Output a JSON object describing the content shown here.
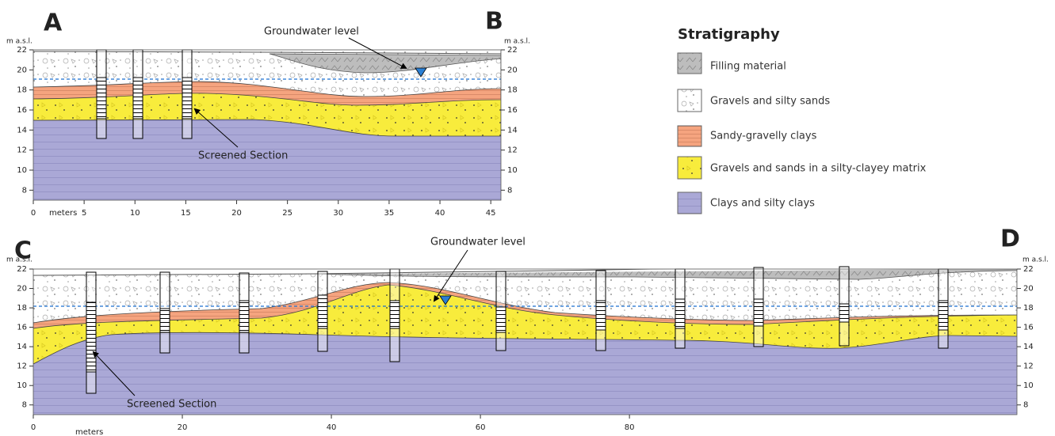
{
  "panels": [
    {
      "labels": [
        "A",
        "B"
      ],
      "y_unit": "m a.s.l.",
      "x_unit": "meters",
      "xlim": [
        0,
        46
      ],
      "ylim": [
        7,
        22
      ],
      "yticks": [
        8,
        10,
        12,
        14,
        16,
        18,
        20,
        22
      ],
      "xticks": [
        0,
        5,
        10,
        15,
        20,
        25,
        30,
        35,
        40,
        45
      ],
      "annotations": [
        "Groundwater level",
        "Screened Section"
      ]
    },
    {
      "labels": [
        "C",
        "D"
      ],
      "y_unit": "m a.s.l.",
      "x_unit": "meters",
      "xlim": [
        0,
        132
      ],
      "ylim": [
        7,
        22
      ],
      "yticks": [
        8,
        10,
        12,
        14,
        16,
        18,
        20,
        22
      ],
      "xticks": [
        0,
        20,
        40,
        60,
        80
      ],
      "annotations": [
        "Groundwater level",
        "Screened Section"
      ]
    }
  ],
  "legend": {
    "title": "Stratigraphy",
    "items": [
      "Filling material",
      "Gravels and silty sands",
      "Sandy-gravelly clays",
      "Gravels and sands in a silty-clayey matrix",
      "Clays and silty clays"
    ]
  }
}
